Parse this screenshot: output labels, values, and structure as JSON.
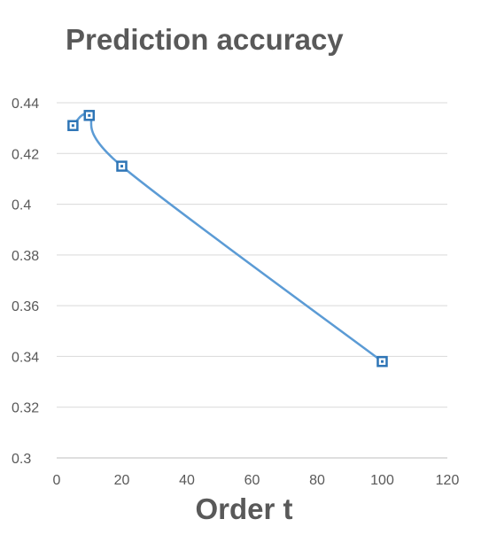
{
  "chart_data": {
    "type": "scatter",
    "title": "Prediction accuracy",
    "xlabel": "Order t",
    "ylabel": "",
    "xlim": [
      0,
      120
    ],
    "ylim": [
      0.3,
      0.44
    ],
    "x_ticks": [
      "0",
      "20",
      "40",
      "60",
      "80",
      "100",
      "120"
    ],
    "y_ticks": [
      "0.3",
      "0.32",
      "0.34",
      "0.36",
      "0.38",
      "0.4",
      "0.42",
      "0.44"
    ],
    "grid": "horizontal",
    "legend": "none",
    "line_style": "smooth",
    "color": "#2e75b6",
    "series": [
      {
        "x": [
          5,
          10,
          20,
          100
        ],
        "y": [
          0.431,
          0.435,
          0.415,
          0.338
        ]
      }
    ]
  }
}
